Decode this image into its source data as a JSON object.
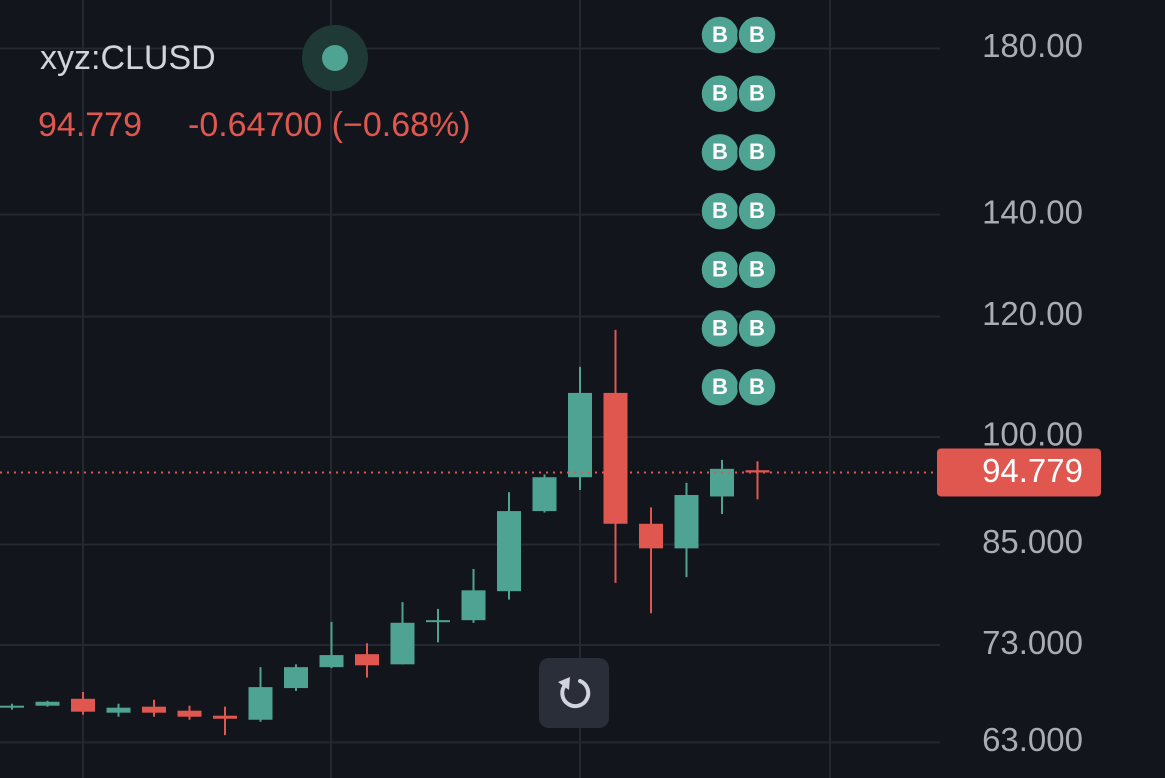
{
  "header": {
    "symbol": "xyz:CLUSD",
    "change": "-0.64700 (−0.68%)"
  },
  "chart_data": {
    "type": "candlestick",
    "categories": [
      null,
      null,
      null,
      null,
      null,
      null,
      null,
      null,
      null,
      null,
      null,
      null,
      null,
      null,
      null,
      null,
      null,
      null,
      null,
      null,
      null,
      null
    ],
    "open": [
      66.4,
      66.6,
      67.3,
      65.9,
      66.5,
      66.1,
      65.6,
      65.2,
      68.4,
      70.6,
      72.0,
      70.9,
      75.6,
      75.8,
      79.2,
      89.4,
      94.1,
      106.9,
      87.7,
      84.5,
      91.4,
      95.1
    ],
    "high": [
      66.8,
      67.1,
      68.0,
      66.8,
      67.2,
      66.6,
      66.5,
      70.6,
      70.9,
      75.6,
      73.2,
      77.9,
      77.1,
      81.9,
      92.0,
      94.5,
      111.2,
      117.6,
      89.9,
      93.3,
      96.6,
      96.4
    ],
    "low": [
      66.2,
      66.5,
      65.7,
      65.5,
      65.5,
      65.2,
      63.7,
      65.0,
      68.1,
      70.5,
      69.5,
      70.9,
      73.3,
      75.5,
      78.2,
      89.2,
      92.3,
      80.2,
      76.6,
      80.9,
      89.0,
      91.0
    ],
    "close": [
      66.6,
      67.0,
      66.0,
      66.4,
      65.9,
      65.5,
      65.3,
      68.5,
      70.6,
      71.9,
      70.8,
      75.5,
      75.8,
      79.3,
      89.4,
      94.1,
      106.9,
      87.7,
      84.5,
      91.6,
      95.3,
      94.779
    ],
    "up_color": "#4fa393",
    "down_color": "#e0574f",
    "last_price": 94.779,
    "log_scale": true,
    "grid": true,
    "ylim": [
      59.7,
      193.7
    ],
    "yticks": [
      {
        "value": 63,
        "label": "63.000"
      },
      {
        "value": 73,
        "label": "73.000"
      },
      {
        "value": 85,
        "label": "85.000"
      },
      {
        "value": 100,
        "label": "100.00"
      },
      {
        "value": 120,
        "label": "120.00"
      },
      {
        "value": 140,
        "label": "140.00"
      },
      {
        "value": 180,
        "label": "180.00"
      }
    ],
    "markers": [
      [
        "B",
        "B"
      ],
      [
        "B",
        "B"
      ],
      [
        "B",
        "B"
      ],
      [
        "B",
        "B"
      ],
      [
        "B",
        "B"
      ],
      [
        "B",
        "B"
      ],
      [
        "B",
        "B"
      ]
    ]
  }
}
